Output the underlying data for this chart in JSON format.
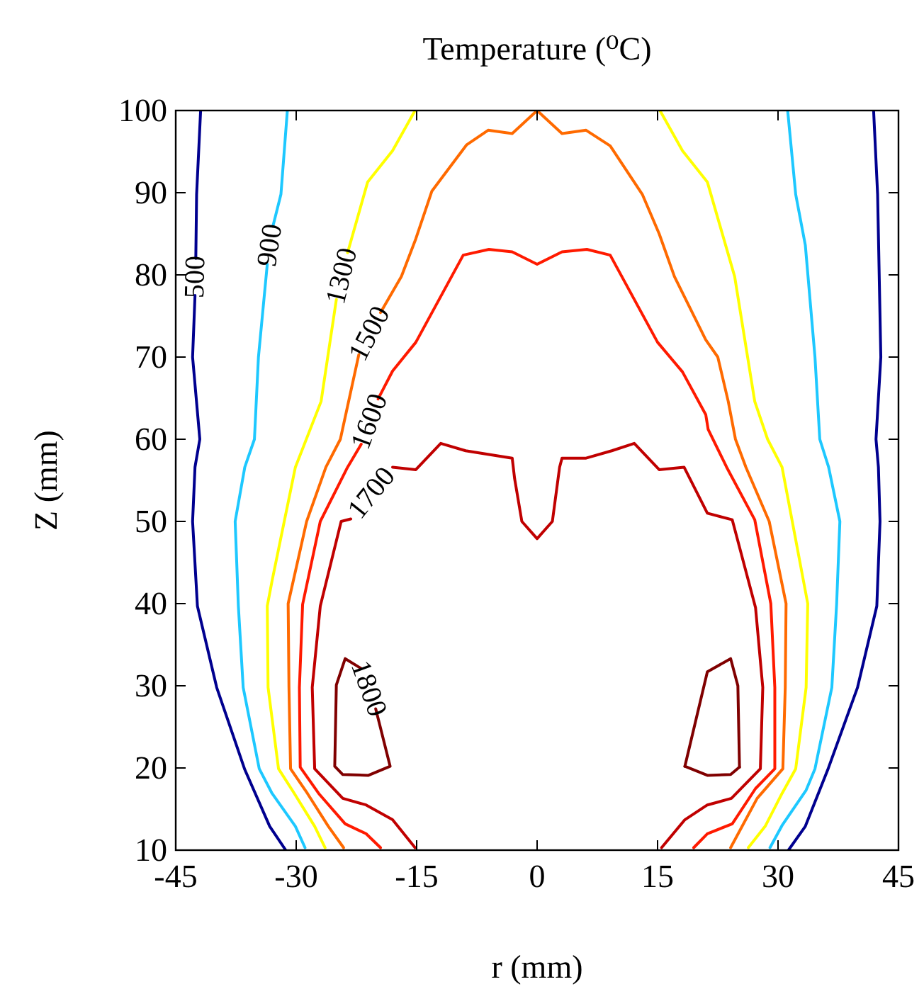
{
  "chart_data": {
    "type": "line",
    "title": "Temperature (⁰C)",
    "xlabel": "r (mm)",
    "ylabel": "Z (mm)",
    "xlim": [
      -45,
      45
    ],
    "xticks": [
      -45,
      -30,
      -15,
      0,
      15,
      30,
      45
    ],
    "ylim": [
      10,
      100
    ],
    "yticks": [
      10,
      20,
      30,
      40,
      50,
      60,
      70,
      80,
      90,
      100
    ],
    "grid": false,
    "legend": false,
    "marker": "none",
    "line_style": "solid",
    "series": [
      {
        "name": "500",
        "color": "#00008f",
        "x": [
          -31.3,
          -33.3,
          -36.4,
          -39.9,
          -42.3,
          -42.9,
          -42.6,
          -42,
          -42.9,
          -42.6,
          null,
          -42.5,
          -42.4,
          -41.9,
          null,
          41.9,
          42.4,
          42.8,
          42.2,
          42.5,
          42.7,
          42.3,
          39.9,
          36.2,
          33.4,
          31.3
        ],
        "values": [
          10,
          12.9,
          19.8,
          29.8,
          39.7,
          50,
          56.6,
          60,
          70,
          77.5,
          null,
          82,
          89.8,
          100,
          null,
          100,
          89.8,
          70,
          60,
          56.6,
          50,
          39.7,
          29.8,
          19.8,
          12.9,
          10
        ]
      },
      {
        "name": "900",
        "color": "#1ec8ff",
        "x": [
          -28.9,
          -30.1,
          -33,
          -34.6,
          -36.6,
          -37.2,
          -37.6,
          -36.4,
          -35.2,
          -34.7,
          -33.6,
          null,
          -32.9,
          -31.9,
          -31.1,
          null,
          31.2,
          32.2,
          33.4,
          34.6,
          35.2,
          36.3,
          37.7,
          37.3,
          36.7,
          34.6,
          33.5,
          30.5,
          29
        ],
        "values": [
          10.3,
          12.9,
          16.9,
          19.9,
          29.8,
          39.7,
          50,
          56.6,
          60,
          70,
          81.3,
          null,
          85.9,
          89.8,
          100,
          null,
          100,
          89.8,
          83.6,
          70,
          60,
          56.6,
          50,
          40,
          29.8,
          19.9,
          17.3,
          13,
          10.3
        ]
      },
      {
        "name": "1300",
        "color": "#ffff00",
        "x": [
          -26.4,
          -27.7,
          -30.3,
          -32.2,
          -33.5,
          -33.6,
          -33,
          -30.1,
          -26.9,
          -25,
          null,
          -23.6,
          -21.1,
          -18,
          -15.2,
          null,
          15.3,
          18.1,
          21.2,
          24.6,
          27.1,
          28.7,
          30.5,
          33.7,
          33.5,
          32.2,
          30.5,
          28.4,
          26.3
        ],
        "values": [
          10.3,
          12.9,
          17,
          19.9,
          29.8,
          39.7,
          42.8,
          56.6,
          64.6,
          77,
          null,
          82.7,
          91.3,
          95.1,
          100,
          null,
          100,
          95.1,
          91.3,
          79.8,
          64.6,
          60,
          56.6,
          40,
          29.8,
          19.9,
          16.9,
          12.9,
          10.3
        ]
      },
      {
        "name": "1500",
        "color": "#ff6a00",
        "x": [
          -24.1,
          -26,
          -28.6,
          -30.7,
          -30.9,
          -31,
          -28.7,
          -26.3,
          -24.5,
          -22.2,
          null,
          -19.5,
          -16.9,
          -15.1,
          -13.1,
          -8.8,
          -6.1,
          -3.1,
          0,
          3.1,
          6.1,
          9.1,
          13.1,
          15.2,
          17.1,
          21,
          22.5,
          23.8,
          24.7,
          26,
          28.9,
          31,
          30.9,
          30.6,
          27.4,
          24.1
        ],
        "values": [
          10.3,
          12.9,
          16.9,
          19.9,
          29.8,
          40,
          50,
          56.6,
          60,
          70.3,
          null,
          75.4,
          79.8,
          84.4,
          90.2,
          95.8,
          97.6,
          97.2,
          100,
          97.2,
          97.6,
          95.7,
          89.8,
          85,
          79.8,
          72.1,
          70,
          64.6,
          60,
          56.6,
          50,
          40,
          29.8,
          19.9,
          16.3,
          10.3
        ]
      },
      {
        "name": "1600",
        "color": "#ff1a00",
        "x": [
          -19.5,
          -21.3,
          -23.9,
          -27.2,
          -29.5,
          -29.6,
          -29.2,
          -27,
          -23.6,
          -21.9,
          null,
          -19.8,
          -18,
          -15.1,
          -9.2,
          -6,
          -3.1,
          0,
          3.1,
          6.2,
          9.1,
          15,
          18.1,
          21,
          21.3,
          23.6,
          27.1,
          29.1,
          29.6,
          29.6,
          27.2,
          24.3,
          21.2,
          19.5
        ],
        "values": [
          10.3,
          12,
          13.2,
          16.9,
          20.1,
          29.8,
          39.9,
          50,
          56.6,
          59.4,
          null,
          64.9,
          68.3,
          71.8,
          82.4,
          83.1,
          82.8,
          81.3,
          82.8,
          83.1,
          82.4,
          71.8,
          68.2,
          63,
          61.2,
          56.6,
          50.2,
          40,
          29.8,
          19.9,
          17.5,
          13.2,
          12,
          10.3
        ]
      },
      {
        "name": "1700",
        "color": "#c00000",
        "x": [
          -15.2,
          -18,
          -21.3,
          -24.2,
          -27.7,
          -28,
          -27,
          -24.4,
          -23.2,
          null,
          -18,
          -15.1,
          -12,
          -8.9,
          -3.1,
          -2.8,
          -1.9,
          0,
          1.9,
          2.8,
          3.1,
          6.1,
          9.3,
          12.1,
          15.2,
          18.3,
          21.2,
          24.3,
          27.2,
          28.1,
          27.8,
          24.2,
          21.2,
          18.4,
          15.5
        ],
        "values": [
          10.3,
          13.7,
          15.5,
          16.3,
          19.9,
          29.8,
          39.7,
          50,
          50.3,
          null,
          56.6,
          56.3,
          59.5,
          58.6,
          57.7,
          55.2,
          50,
          47.9,
          50,
          56.6,
          57.7,
          57.7,
          58.6,
          59.5,
          56.3,
          56.6,
          51,
          50.2,
          39.5,
          29.8,
          19.9,
          16.3,
          15.5,
          13.7,
          10.3
        ]
      },
      {
        "name": "1800",
        "color": "#800000",
        "x": [
          -23.9,
          -21.9,
          null,
          -20.1,
          -18.3,
          -21,
          -24.2,
          -25.2,
          -25,
          -23.9
        ],
        "values": [
          33.3,
          32.1,
          null,
          27.2,
          20.2,
          19.1,
          19.2,
          20.2,
          30.1,
          33.3
        ]
      },
      {
        "color": "#800000",
        "x": [
          18.4,
          21.2,
          24.1,
          25,
          25.2
        ],
        "values": [
          20.2,
          31.7,
          33.3,
          30,
          20.1
        ]
      },
      {
        "color": "#800000",
        "x": [
          25.2,
          24.1,
          21.2,
          18.4
        ],
        "values": [
          20.1,
          19.2,
          19.1,
          20.2
        ]
      }
    ]
  }
}
